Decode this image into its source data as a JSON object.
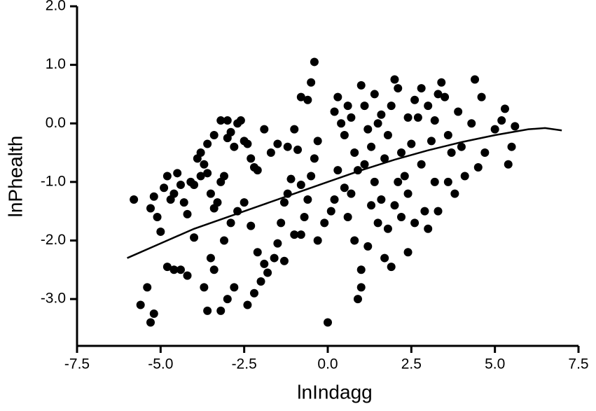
{
  "chart_data": {
    "type": "scatter",
    "x_label": "lnIndagg",
    "y_label": "lnPhealth",
    "xlim": [
      -7.5,
      7.5
    ],
    "ylim": [
      -3.8,
      2.0
    ],
    "xticks": [
      -7.5,
      {
        "value": -5,
        "label": "-5.0"
      },
      -2.5,
      {
        "value": 0,
        "label": "0.0"
      },
      2.5,
      {
        "value": 5,
        "label": "5.0"
      },
      7.5
    ],
    "yticks": [
      {
        "value": -3,
        "label": "-3.0"
      },
      {
        "value": -2,
        "label": "-2.0"
      },
      {
        "value": -1,
        "label": "-1.0"
      },
      {
        "value": 0,
        "label": "0.0"
      },
      {
        "value": 1,
        "label": "1.0"
      },
      {
        "value": 2,
        "label": "2.0"
      }
    ],
    "series": [
      {
        "type": "scatter",
        "color": "#000000",
        "x": [
          -5.8,
          -5.6,
          -5.4,
          -5.3,
          -5.2,
          -5.3,
          -5.2,
          -5.1,
          -5.0,
          -4.9,
          -4.8,
          -4.7,
          -4.6,
          -4.5,
          -4.4,
          -4.3,
          -4.2,
          -4.1,
          -4.8,
          -4.6,
          -4.4,
          -4.2,
          -4.0,
          -3.9,
          -3.8,
          -3.7,
          -3.6,
          -3.5,
          -3.4,
          -3.3,
          -3.2,
          -3.1,
          -3.0,
          -2.9,
          -2.8,
          -2.7,
          -2.6,
          -2.5,
          -2.4,
          -2.3,
          -2.2,
          -3.0,
          -3.2,
          -3.4,
          -3.6,
          -3.8,
          -4.0,
          -3.5,
          -3.4,
          -3.7,
          -3.6,
          -3.2,
          -3.0,
          -2.8,
          -3.1,
          -2.9,
          -2.7,
          -2.5,
          -2.3,
          -2.1,
          -1.9,
          -2.0,
          -2.2,
          -2.4,
          -1.8,
          -1.6,
          -1.5,
          -1.4,
          -1.3,
          -1.2,
          -1.1,
          -1.2,
          -1.5,
          -1.7,
          -1.9,
          -2.1,
          -1.0,
          -0.9,
          -0.8,
          -0.7,
          -0.6,
          -0.5,
          -0.4,
          -0.3,
          -0.6,
          -0.5,
          -0.4,
          -0.8,
          -0.3,
          -0.1,
          0.1,
          0.0,
          -1.0,
          -0.8,
          -1.3,
          0.2,
          0.3,
          0.4,
          0.5,
          0.6,
          0.7,
          0.8,
          0.9,
          1.0,
          1.1,
          1.2,
          1.3,
          1.4,
          1.5,
          1.6,
          1.7,
          1.8,
          1.9,
          2.0,
          2.1,
          2.2,
          2.3,
          2.4,
          2.5,
          2.6,
          2.7,
          2.8,
          2.9,
          3.0,
          3.1,
          3.2,
          3.3,
          3.4,
          3.5,
          3.6,
          3.7,
          3.8,
          3.9,
          4.0,
          4.1,
          4.3,
          4.4,
          4.5,
          4.6,
          4.7,
          5.0,
          5.2,
          5.3,
          5.4,
          5.5,
          5.6,
          0.8,
          1.0,
          1.0,
          0.9,
          1.2,
          1.7,
          1.9,
          2.4,
          1.5,
          1.8,
          2.0,
          2.2,
          2.6,
          3.0,
          3.3,
          3.6,
          2.1,
          1.3,
          0.5,
          0.3,
          0.7,
          0.2,
          0.6,
          1.1,
          2.8,
          3.2,
          2.4,
          1.6,
          1.4
        ],
        "values": [
          -1.3,
          -3.1,
          -2.8,
          -3.4,
          -3.25,
          -1.45,
          -1.25,
          -1.6,
          -1.85,
          -1.1,
          -0.9,
          -1.3,
          -1.2,
          -0.85,
          -1.05,
          -1.35,
          -1.55,
          -1.0,
          -2.45,
          -2.5,
          -2.5,
          -2.6,
          -1.95,
          -0.6,
          -0.5,
          -0.7,
          -0.85,
          -1.2,
          -1.45,
          -1.35,
          -1.0,
          -0.9,
          -0.25,
          -0.15,
          -0.4,
          0.0,
          0.05,
          -0.3,
          -0.35,
          -0.6,
          -0.75,
          0.05,
          0.05,
          -0.2,
          -0.35,
          -0.9,
          -1.05,
          -2.3,
          -2.5,
          -2.8,
          -3.2,
          -3.2,
          -3.0,
          -2.8,
          -2.0,
          -1.7,
          -1.5,
          -1.35,
          -1.75,
          -2.2,
          -2.4,
          -2.7,
          -2.9,
          -3.1,
          -2.55,
          -2.3,
          -2.05,
          -1.7,
          -1.35,
          -1.2,
          -0.95,
          -0.4,
          -0.35,
          -0.5,
          -0.1,
          -0.8,
          -0.1,
          -0.45,
          -1.05,
          -1.6,
          -1.3,
          -0.9,
          -0.6,
          -0.3,
          0.4,
          0.7,
          1.05,
          0.45,
          -2.0,
          -1.7,
          -1.5,
          -3.4,
          -1.9,
          -1.9,
          -2.35,
          0.2,
          0.45,
          0.0,
          -0.2,
          0.3,
          0.1,
          -0.5,
          -0.8,
          0.65,
          0.3,
          -0.1,
          -0.4,
          -1.0,
          0.0,
          -1.3,
          -0.6,
          -0.2,
          0.3,
          0.75,
          0.6,
          -0.5,
          -0.9,
          -1.2,
          -0.35,
          0.4,
          0.1,
          -0.7,
          -1.5,
          0.3,
          -0.3,
          -1.0,
          0.5,
          0.7,
          0.45,
          -0.2,
          -0.5,
          -1.2,
          0.2,
          -0.4,
          -0.9,
          0.0,
          0.75,
          -0.75,
          0.45,
          -0.5,
          -0.1,
          0.05,
          0.25,
          -0.7,
          -0.4,
          -0.05,
          -2.0,
          -2.5,
          -2.8,
          -3.0,
          -2.1,
          -2.3,
          -2.45,
          -2.2,
          -1.7,
          -1.8,
          -1.4,
          -1.6,
          -1.7,
          -1.8,
          -1.5,
          -1.0,
          -1.0,
          -1.4,
          -1.1,
          -0.8,
          -1.2,
          -1.3,
          -1.6,
          -0.7,
          0.6,
          0.05,
          0.1,
          0.15,
          0.5
        ]
      },
      {
        "type": "line",
        "color": "#000000",
        "x": [
          -6,
          -5,
          -4,
          -3,
          -2,
          -1,
          0,
          1,
          2,
          3,
          4,
          5,
          6,
          6.5,
          7
        ],
        "values": [
          -2.3,
          -2.05,
          -1.8,
          -1.6,
          -1.4,
          -1.2,
          -1.0,
          -0.8,
          -0.62,
          -0.46,
          -0.32,
          -0.2,
          -0.1,
          -0.08,
          -0.12
        ]
      }
    ]
  }
}
